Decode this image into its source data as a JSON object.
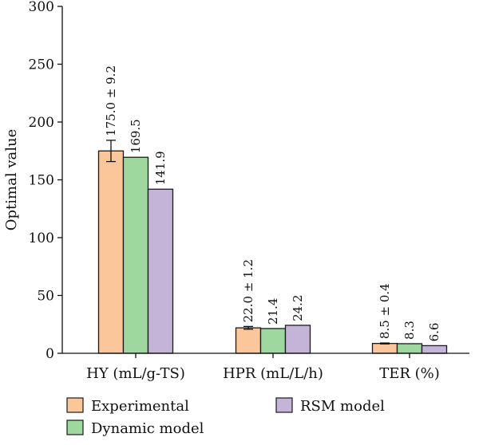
{
  "chart_data": {
    "type": "bar",
    "ylabel": "Optimal value",
    "ylim": [
      0,
      300
    ],
    "yticks": [
      0,
      50,
      100,
      150,
      200,
      250,
      300
    ],
    "categories": [
      "HY (mL/g-TS)",
      "HPR (mL/L/h)",
      "TER (%)"
    ],
    "series": [
      {
        "name": "Experimental",
        "color": "#fbc79a",
        "values": [
          175.0,
          22.0,
          8.5
        ],
        "errors": [
          9.2,
          1.2,
          0.4
        ],
        "labels": [
          "175.0 ± 9.2",
          "22.0 ± 1.2",
          "8.5 ± 0.4"
        ]
      },
      {
        "name": "Dynamic model",
        "color": "#9ed89e",
        "values": [
          169.5,
          21.4,
          8.3
        ],
        "labels": [
          "169.5",
          "21.4",
          "8.3"
        ]
      },
      {
        "name": "RSM model",
        "color": "#c3b4d8",
        "values": [
          141.9,
          24.2,
          6.6
        ],
        "labels": [
          "141.9",
          "24.2",
          "6.6"
        ]
      }
    ],
    "grid": false,
    "legend_position": "bottom"
  }
}
